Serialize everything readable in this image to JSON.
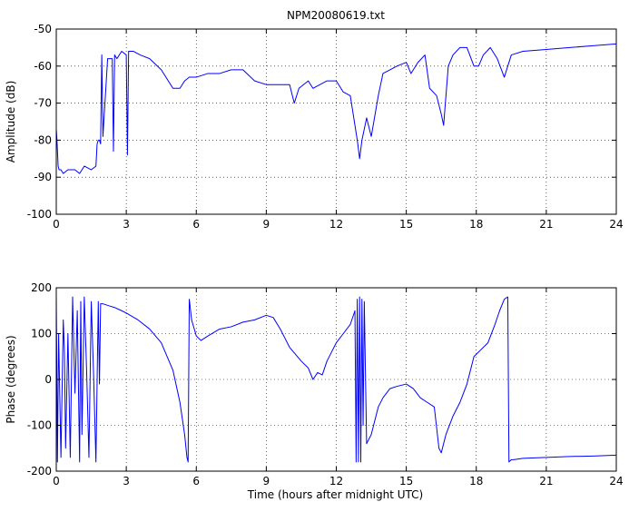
{
  "figure_title": "NPM20080619.txt",
  "line_color": "#0000ff",
  "chart_data": [
    {
      "type": "line",
      "ylabel": "Amplitude (dB)",
      "xlabel": "",
      "xlim": [
        0,
        24
      ],
      "ylim": [
        -100,
        -50
      ],
      "xticks": [
        0,
        3,
        6,
        9,
        12,
        15,
        18,
        21,
        24
      ],
      "yticks": [
        -100,
        -90,
        -80,
        -70,
        -60,
        -50
      ],
      "grid": true,
      "series": [
        {
          "x": [
            0,
            0.03,
            0.08,
            0.12,
            0.2,
            0.3,
            0.5,
            0.8,
            1.0,
            1.2,
            1.5,
            1.7,
            1.75,
            1.8,
            1.85,
            1.9,
            1.95,
            2.0,
            2.2,
            2.4,
            2.45,
            2.5,
            2.6,
            2.8,
            3.0,
            3.05,
            3.1,
            3.3,
            3.6,
            4.0,
            4.5,
            5.0,
            5.3,
            5.5,
            5.7,
            6.0,
            6.5,
            7.0,
            7.5,
            8.0,
            8.5,
            9.0,
            9.5,
            10.0,
            10.2,
            10.4,
            10.8,
            11.0,
            11.3,
            11.6,
            12.0,
            12.3,
            12.6,
            12.9,
            13.0,
            13.1,
            13.3,
            13.5,
            13.8,
            14.0,
            14.3,
            14.6,
            15.0,
            15.2,
            15.5,
            15.8,
            16.0,
            16.3,
            16.5,
            16.6,
            16.8,
            17.0,
            17.3,
            17.6,
            17.9,
            18.1,
            18.3,
            18.6,
            18.9,
            19.2,
            19.5,
            20.0,
            21.0,
            22.0,
            23.0,
            24.0
          ],
          "y": [
            -77,
            -80,
            -87,
            -88,
            -88,
            -89,
            -88,
            -88,
            -89,
            -87,
            -88,
            -87,
            -81,
            -80,
            -80,
            -81,
            -57,
            -79,
            -58,
            -58,
            -83,
            -57,
            -58,
            -56,
            -57,
            -84,
            -56,
            -56,
            -57,
            -58,
            -61,
            -66,
            -66,
            -64,
            -63,
            -63,
            -62,
            -62,
            -61,
            -61,
            -64,
            -65,
            -65,
            -65,
            -70,
            -66,
            -64,
            -66,
            -65,
            -64,
            -64,
            -67,
            -68,
            -80,
            -85,
            -80,
            -74,
            -79,
            -68,
            -62,
            -61,
            -60,
            -59,
            -62,
            -59,
            -57,
            -66,
            -68,
            -73,
            -76,
            -60,
            -57,
            -55,
            -55,
            -60,
            -60,
            -57,
            -55,
            -58,
            -63,
            -57,
            -56,
            -55.5,
            -55,
            -54.5,
            -54
          ]
        }
      ]
    },
    {
      "type": "line",
      "ylabel": "Phase (degrees)",
      "xlabel": "Time (hours after midnight UTC)",
      "xlim": [
        0,
        24
      ],
      "ylim": [
        -200,
        200
      ],
      "xticks": [
        0,
        3,
        6,
        9,
        12,
        15,
        18,
        21,
        24
      ],
      "yticks": [
        -200,
        -100,
        0,
        100,
        200
      ],
      "grid": true,
      "series": [
        {
          "x": [
            0,
            0.05,
            0.1,
            0.2,
            0.3,
            0.35,
            0.4,
            0.5,
            0.6,
            0.7,
            0.8,
            0.9,
            1.0,
            1.05,
            1.1,
            1.2,
            1.3,
            1.4,
            1.5,
            1.6,
            1.7,
            1.8,
            1.85,
            1.9,
            2.0,
            2.3,
            2.5,
            2.8,
            3.0,
            3.5,
            4.0,
            4.5,
            5.0,
            5.3,
            5.5,
            5.6,
            5.65,
            5.7,
            5.8,
            6.0,
            6.2,
            6.5,
            7.0,
            7.5,
            8.0,
            8.5,
            9.0,
            9.3,
            9.6,
            10.0,
            10.5,
            10.8,
            11.0,
            11.2,
            11.4,
            11.6,
            11.8,
            12.0,
            12.3,
            12.6,
            12.8,
            12.85,
            12.9,
            12.95,
            13.0,
            13.05,
            13.1,
            13.15,
            13.2,
            13.3,
            13.5,
            13.8,
            14.0,
            14.3,
            14.6,
            15.0,
            15.3,
            15.6,
            15.9,
            16.2,
            16.4,
            16.5,
            16.7,
            17.0,
            17.3,
            17.6,
            17.9,
            18.2,
            18.5,
            18.8,
            19.0,
            19.2,
            19.35,
            19.4,
            19.5,
            19.6,
            20.0,
            21.0,
            22.0,
            23.0,
            24.0
          ],
          "y": [
            180,
            -180,
            100,
            -170,
            130,
            60,
            -150,
            100,
            -170,
            180,
            -30,
            150,
            -180,
            170,
            -120,
            180,
            20,
            -170,
            170,
            10,
            -180,
            170,
            -10,
            165,
            165,
            160,
            157,
            150,
            145,
            130,
            110,
            80,
            20,
            -50,
            -120,
            -170,
            -180,
            175,
            130,
            95,
            85,
            95,
            110,
            115,
            125,
            130,
            140,
            135,
            110,
            70,
            40,
            25,
            0,
            15,
            10,
            40,
            60,
            80,
            100,
            120,
            150,
            -180,
            175,
            -180,
            180,
            -180,
            175,
            -100,
            170,
            -140,
            -120,
            -60,
            -40,
            -20,
            -15,
            -10,
            -20,
            -40,
            -50,
            -60,
            -150,
            -160,
            -120,
            -80,
            -50,
            -10,
            50,
            65,
            80,
            120,
            150,
            175,
            180,
            -180,
            -175,
            -175,
            -172,
            -170,
            -168,
            -167,
            -165
          ]
        }
      ]
    }
  ]
}
